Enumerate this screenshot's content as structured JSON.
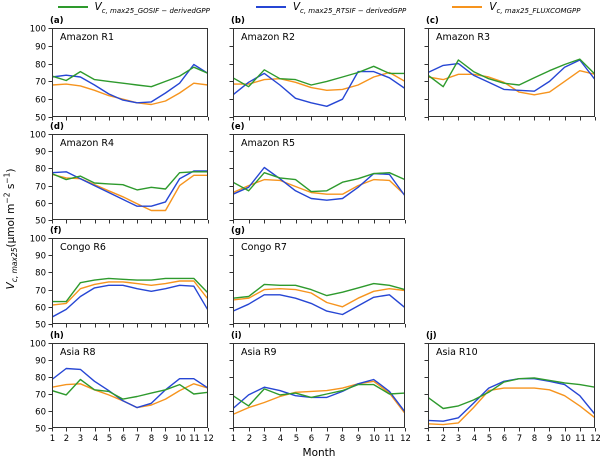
{
  "colors": {
    "gosif": "#2e9a2d",
    "rtsif": "#2646d4",
    "fluxcom": "#f6941e",
    "axis": "#333333",
    "text": "#000000"
  },
  "legend": [
    {
      "series": "gosif",
      "var": "V",
      "sub": "c, max25_GOSIF − derivedGPP"
    },
    {
      "series": "rtsif",
      "var": "V",
      "sub": "c, max25_RTSIF − derivedGPP"
    },
    {
      "series": "fluxcom",
      "var": "V",
      "sub": "c, max25_FLUXCOMGPP"
    }
  ],
  "axes": {
    "x_label": "Month",
    "y_label": {
      "var": "V",
      "sub": "c, max25",
      "unit_pre": "(μmol m",
      "sup1": "−2",
      "unit_mid": " s",
      "sup2": "−1",
      "unit_post": ")"
    },
    "x_ticks": [
      1,
      2,
      3,
      4,
      5,
      6,
      7,
      8,
      9,
      10,
      11,
      12
    ],
    "y_ticks": [
      50,
      60,
      70,
      80,
      90,
      100
    ],
    "xlim": [
      1,
      12
    ],
    "ylim": [
      50,
      100
    ]
  },
  "chart_data": {
    "type": "line",
    "x": [
      1,
      2,
      3,
      4,
      5,
      6,
      7,
      8,
      9,
      10,
      11,
      12
    ],
    "series_names": [
      "gosif",
      "rtsif",
      "fluxcom"
    ],
    "panels": [
      {
        "id": "a",
        "letter": "(a)",
        "region": "Amazon R1",
        "grid": [
          0,
          0
        ],
        "gosif": [
          73,
          70.5,
          75.5,
          71,
          70,
          69,
          68,
          67,
          70,
          73,
          78,
          74.5
        ],
        "rtsif": [
          72.5,
          73.5,
          72.5,
          68,
          63,
          59.5,
          58,
          58.5,
          63.5,
          69,
          79.5,
          74.5
        ],
        "fluxcom": [
          68,
          68.5,
          67.5,
          65,
          62,
          60,
          58,
          57,
          59,
          63.5,
          69,
          68
        ]
      },
      {
        "id": "b",
        "letter": "(b)",
        "region": "Amazon R2",
        "grid": [
          0,
          1
        ],
        "gosif": [
          72,
          67,
          76.5,
          71.5,
          71,
          68,
          70,
          72.5,
          75,
          78.5,
          74.5,
          74.5
        ],
        "rtsif": [
          62.5,
          69.5,
          74.5,
          68,
          60.5,
          58,
          56,
          60,
          75.5,
          75.5,
          72,
          66
        ],
        "fluxcom": [
          68.5,
          68.5,
          71,
          71.5,
          69.5,
          66.5,
          65,
          65.5,
          68,
          72.5,
          75,
          70
        ]
      },
      {
        "id": "c",
        "letter": "(c)",
        "region": "Amazon R3",
        "grid": [
          0,
          2
        ],
        "gosif": [
          73.5,
          67,
          82,
          75.5,
          71.5,
          69,
          68,
          72,
          76,
          79.5,
          82.5,
          74
        ],
        "rtsif": [
          75,
          79,
          80,
          73.5,
          69.5,
          65.5,
          65,
          64.5,
          70,
          78,
          82,
          71
        ],
        "fluxcom": [
          72.5,
          71,
          74,
          74,
          72.5,
          69.5,
          64,
          62.5,
          64,
          70,
          76,
          74
        ]
      },
      {
        "id": "d",
        "letter": "(d)",
        "region": "Amazon R4",
        "grid": [
          1,
          0
        ],
        "gosif": [
          77,
          73.5,
          75.5,
          71.5,
          71,
          70.5,
          67.5,
          69,
          68,
          77.5,
          78,
          78
        ],
        "rtsif": [
          77.5,
          78,
          74,
          70,
          66,
          62,
          58,
          58,
          60.5,
          74,
          78.5,
          78.5
        ],
        "fluxcom": [
          76.5,
          74.5,
          74,
          70.5,
          67,
          63.5,
          59.5,
          55.5,
          55.5,
          70,
          76,
          76
        ]
      },
      {
        "id": "e",
        "letter": "(e)",
        "region": "Amazon R5",
        "grid": [
          1,
          1
        ],
        "gosif": [
          72,
          67,
          77.5,
          74.5,
          73.5,
          66.5,
          67,
          72,
          74,
          77,
          77.5,
          73.5
        ],
        "rtsif": [
          65,
          69,
          80.5,
          74,
          67,
          62.5,
          61.5,
          62.5,
          69,
          77,
          76.5,
          64
        ],
        "fluxcom": [
          66,
          70,
          73.5,
          73,
          69.5,
          66,
          65,
          65,
          70,
          73.5,
          73,
          64.5
        ]
      },
      {
        "id": "f",
        "letter": "(f)",
        "region": "Congo R6",
        "grid": [
          2,
          0
        ],
        "gosif": [
          63,
          63,
          74,
          75.5,
          76.5,
          76,
          75.5,
          75.5,
          76.5,
          76.5,
          76.5,
          68
        ],
        "rtsif": [
          54,
          58.5,
          66,
          71,
          72.5,
          72.5,
          70.5,
          69,
          70.5,
          72.5,
          72,
          58
        ],
        "fluxcom": [
          61,
          62,
          70.5,
          73,
          74.5,
          74.5,
          73.5,
          72.5,
          73.5,
          75,
          75,
          64.5
        ]
      },
      {
        "id": "g",
        "letter": "(g)",
        "region": "Congo R7",
        "grid": [
          2,
          1
        ],
        "gosif": [
          65,
          66,
          73,
          72.5,
          72.5,
          70,
          66.5,
          68.5,
          71,
          73.5,
          72.5,
          70
        ],
        "rtsif": [
          57.5,
          61.5,
          67,
          67,
          65,
          62,
          57.5,
          55.5,
          60.5,
          65.5,
          67,
          59.5
        ],
        "fluxcom": [
          64,
          65,
          70,
          70.5,
          70,
          68,
          62.5,
          60,
          65,
          69,
          70.5,
          69.5
        ]
      },
      {
        "id": "h",
        "letter": "(h)",
        "region": "Asia R8",
        "grid": [
          3,
          0
        ],
        "gosif": [
          72,
          69.5,
          78.5,
          72.5,
          71.5,
          67,
          68.5,
          70.5,
          72.5,
          75.5,
          70,
          71
        ],
        "rtsif": [
          78.5,
          85,
          84.5,
          77.5,
          72,
          66,
          62,
          64.5,
          72.5,
          79,
          79,
          73.5
        ],
        "fluxcom": [
          74,
          75.5,
          76,
          72.5,
          69.5,
          66,
          62,
          63.5,
          67,
          72,
          76,
          73.5
        ]
      },
      {
        "id": "i",
        "letter": "(i)",
        "region": "Asia R9",
        "grid": [
          3,
          1
        ],
        "gosif": [
          69,
          63,
          73,
          69.5,
          70.5,
          68,
          70,
          72,
          75.5,
          75.5,
          70,
          70.5
        ],
        "rtsif": [
          61.5,
          69.5,
          74,
          72,
          69,
          68,
          68,
          71.5,
          76,
          78.5,
          71.5,
          59.5
        ],
        "fluxcom": [
          58,
          62,
          65,
          68.5,
          71,
          71.5,
          72,
          73.5,
          76,
          77.5,
          70.5,
          58.5
        ]
      },
      {
        "id": "j",
        "letter": "(j)",
        "region": "Asia R10",
        "grid": [
          3,
          2
        ],
        "gosif": [
          68,
          61.5,
          63,
          66.5,
          71,
          77,
          79,
          79.5,
          78,
          76.5,
          75.5,
          74
        ],
        "rtsif": [
          54.5,
          54,
          56,
          64.5,
          73.5,
          77.5,
          79,
          79,
          77.5,
          75.5,
          69,
          58
        ],
        "fluxcom": [
          52.5,
          52,
          53,
          62,
          72,
          73.5,
          73.5,
          73.5,
          72.5,
          69,
          63,
          56
        ]
      }
    ]
  }
}
